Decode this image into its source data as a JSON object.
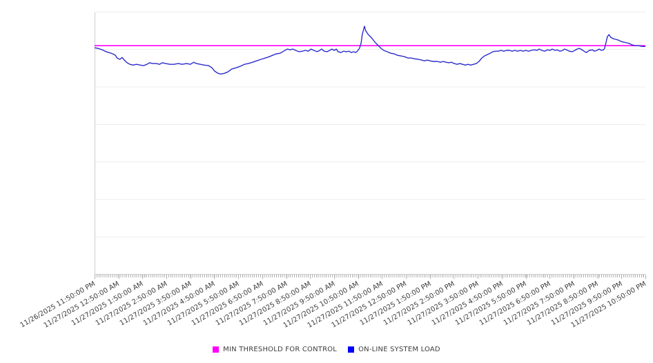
{
  "chart_data": {
    "type": "line",
    "title": "",
    "x_axis": {
      "labels": [
        "11/26/2025 11:50:00 PM",
        "11/27/2025 12:50:00 AM",
        "11/27/2025 1:50:00 AM",
        "11/27/2025 2:50:00 AM",
        "11/27/2025 3:50:00 AM",
        "11/27/2025 4:50:00 AM",
        "11/27/2025 5:50:00 AM",
        "11/27/2025 6:50:00 AM",
        "11/27/2025 7:50:00 AM",
        "11/27/2025 8:50:00 AM",
        "11/27/2025 9:50:00 AM",
        "11/27/2025 10:50:00 AM",
        "11/27/2025 11:50:00 AM",
        "11/27/2025 12:50:00 PM",
        "11/27/2025 1:50:00 PM",
        "11/27/2025 2:50:00 PM",
        "11/27/2025 3:50:00 PM",
        "11/27/2025 4:50:00 PM",
        "11/27/2025 5:50:00 PM",
        "11/27/2025 6:50:00 PM",
        "11/27/2025 7:50:00 PM",
        "11/27/2025 8:50:00 PM",
        "11/27/2025 9:50:00 PM",
        "11/27/2025 10:50:00 PM"
      ],
      "tick_interval": "1 hour"
    },
    "y_axis": {
      "labels_visible": false,
      "ylim": [
        0,
        100
      ],
      "gridline_values": [
        14.3,
        28.6,
        42.9,
        57.1,
        71.4,
        85.7
      ]
    },
    "legend_position": "bottom-center",
    "series": [
      {
        "name": "MIN THRESHOLD FOR CONTROL",
        "type": "constant-line",
        "color": "#ff00ff",
        "legend_color": "#ff00ff",
        "value": 87.1
      },
      {
        "name": "ON-LINE SYSTEM LOAD",
        "type": "line",
        "color": "#2a2acd",
        "legend_color": "#0000ff",
        "points": [
          [
            0,
            86.3
          ],
          [
            0.6,
            86.1
          ],
          [
            1.4,
            85.5
          ],
          [
            2.1,
            84.8
          ],
          [
            2.6,
            84.5
          ],
          [
            3.3,
            84
          ],
          [
            3.8,
            83.4
          ],
          [
            4.1,
            82.4
          ],
          [
            4.6,
            81.9
          ],
          [
            5,
            82.6
          ],
          [
            5.4,
            81.6
          ],
          [
            5.9,
            80.6
          ],
          [
            6.4,
            80
          ],
          [
            7,
            79.7
          ],
          [
            7.6,
            80
          ],
          [
            8.3,
            79.7
          ],
          [
            8.9,
            79.5
          ],
          [
            9.5,
            80
          ],
          [
            10,
            80.6
          ],
          [
            10.5,
            80.3
          ],
          [
            11.2,
            80.3
          ],
          [
            11.8,
            80
          ],
          [
            12.3,
            80.6
          ],
          [
            12.9,
            80.3
          ],
          [
            13.7,
            80
          ],
          [
            14.4,
            80
          ],
          [
            15.2,
            80.3
          ],
          [
            15.9,
            80
          ],
          [
            16.7,
            80.3
          ],
          [
            17.4,
            80
          ],
          [
            18,
            80.8
          ],
          [
            18.5,
            80.3
          ],
          [
            19.2,
            80
          ],
          [
            19.9,
            79.7
          ],
          [
            20.7,
            79.5
          ],
          [
            21.3,
            78.7
          ],
          [
            21.8,
            77.4
          ],
          [
            22.4,
            76.6
          ],
          [
            22.9,
            76.3
          ],
          [
            23.6,
            76.6
          ],
          [
            24.2,
            77.1
          ],
          [
            24.9,
            78.2
          ],
          [
            25.7,
            78.7
          ],
          [
            26.4,
            79.2
          ],
          [
            27.2,
            80
          ],
          [
            27.9,
            80.3
          ],
          [
            28.7,
            80.8
          ],
          [
            29.4,
            81.3
          ],
          [
            30.2,
            81.9
          ],
          [
            31,
            82.4
          ],
          [
            31.7,
            82.9
          ],
          [
            32.3,
            83.4
          ],
          [
            33,
            84
          ],
          [
            33.7,
            84.2
          ],
          [
            34.3,
            85
          ],
          [
            35,
            85.8
          ],
          [
            35.5,
            85.5
          ],
          [
            36,
            85.8
          ],
          [
            36.5,
            85.3
          ],
          [
            37.1,
            84.8
          ],
          [
            37.7,
            85
          ],
          [
            38.3,
            85.3
          ],
          [
            38.8,
            85
          ],
          [
            39.3,
            85.8
          ],
          [
            39.8,
            85.3
          ],
          [
            40.4,
            84.8
          ],
          [
            40.9,
            85.3
          ],
          [
            41.2,
            85.8
          ],
          [
            41.7,
            85
          ],
          [
            42.2,
            84.8
          ],
          [
            42.7,
            85.3
          ],
          [
            43.1,
            85.8
          ],
          [
            43.5,
            85.3
          ],
          [
            43.9,
            85.8
          ],
          [
            44.2,
            84.8
          ],
          [
            44.7,
            84.5
          ],
          [
            45.2,
            85
          ],
          [
            45.7,
            84.8
          ],
          [
            46.2,
            85
          ],
          [
            46.6,
            84.5
          ],
          [
            47,
            84.8
          ],
          [
            47.4,
            84.5
          ],
          [
            47.7,
            85
          ],
          [
            48.1,
            86.1
          ],
          [
            48.4,
            88.2
          ],
          [
            48.6,
            91.3
          ],
          [
            48.9,
            93.7
          ],
          [
            49,
            94.5
          ],
          [
            49.2,
            92.9
          ],
          [
            49.5,
            91.9
          ],
          [
            49.7,
            91.3
          ],
          [
            50.1,
            90.5
          ],
          [
            50.5,
            89.5
          ],
          [
            51,
            88.2
          ],
          [
            51.5,
            87.1
          ],
          [
            52,
            86.1
          ],
          [
            52.5,
            85.3
          ],
          [
            53.1,
            84.8
          ],
          [
            53.8,
            84.2
          ],
          [
            54.4,
            84
          ],
          [
            55,
            83.4
          ],
          [
            55.6,
            83.2
          ],
          [
            56.3,
            82.9
          ],
          [
            56.9,
            82.4
          ],
          [
            57.5,
            82.4
          ],
          [
            58.1,
            82.1
          ],
          [
            58.8,
            81.9
          ],
          [
            59.4,
            81.6
          ],
          [
            59.9,
            81.3
          ],
          [
            60.4,
            81.6
          ],
          [
            60.9,
            81.3
          ],
          [
            61.5,
            81.1
          ],
          [
            62.2,
            81.1
          ],
          [
            62.8,
            80.8
          ],
          [
            63.3,
            81.1
          ],
          [
            63.8,
            80.8
          ],
          [
            64.3,
            80.6
          ],
          [
            64.8,
            80.8
          ],
          [
            65.3,
            80.3
          ],
          [
            65.8,
            80
          ],
          [
            66.3,
            80.3
          ],
          [
            66.8,
            80
          ],
          [
            67.3,
            79.7
          ],
          [
            67.8,
            80
          ],
          [
            68.3,
            79.7
          ],
          [
            68.8,
            80
          ],
          [
            69.3,
            80.3
          ],
          [
            69.8,
            81.1
          ],
          [
            70.3,
            82.4
          ],
          [
            70.8,
            83.2
          ],
          [
            71.3,
            83.7
          ],
          [
            71.8,
            84.2
          ],
          [
            72.3,
            84.8
          ],
          [
            72.8,
            85
          ],
          [
            73.3,
            85
          ],
          [
            73.8,
            85.3
          ],
          [
            74.3,
            85
          ],
          [
            74.8,
            85.3
          ],
          [
            75.3,
            85.3
          ],
          [
            75.8,
            85
          ],
          [
            76.3,
            85.3
          ],
          [
            76.8,
            85
          ],
          [
            77.3,
            85.3
          ],
          [
            77.8,
            85
          ],
          [
            78.3,
            85.3
          ],
          [
            78.8,
            85
          ],
          [
            79.3,
            85.3
          ],
          [
            79.8,
            85.5
          ],
          [
            80.3,
            85.3
          ],
          [
            80.7,
            85.8
          ],
          [
            81.2,
            85.3
          ],
          [
            81.7,
            85
          ],
          [
            82.2,
            85.5
          ],
          [
            82.7,
            85.3
          ],
          [
            83.1,
            85.8
          ],
          [
            83.6,
            85.3
          ],
          [
            84,
            85.5
          ],
          [
            84.5,
            85
          ],
          [
            85,
            85.3
          ],
          [
            85.3,
            85.8
          ],
          [
            85.7,
            85.5
          ],
          [
            86.2,
            85
          ],
          [
            86.7,
            84.8
          ],
          [
            87.2,
            85.3
          ],
          [
            87.6,
            85.8
          ],
          [
            88,
            86.1
          ],
          [
            88.5,
            85.5
          ],
          [
            89,
            84.8
          ],
          [
            89.3,
            84.5
          ],
          [
            89.8,
            85.3
          ],
          [
            90.4,
            85.5
          ],
          [
            90.7,
            85
          ],
          [
            91.2,
            85.3
          ],
          [
            91.6,
            85.8
          ],
          [
            92,
            85.3
          ],
          [
            92.4,
            85.5
          ],
          [
            92.6,
            86.1
          ],
          [
            92.9,
            88.7
          ],
          [
            93.1,
            90.5
          ],
          [
            93.4,
            91.3
          ],
          [
            93.7,
            90.3
          ],
          [
            94.1,
            89.8
          ],
          [
            94.6,
            89.5
          ],
          [
            95.1,
            89.2
          ],
          [
            95.6,
            88.7
          ],
          [
            96.1,
            88.4
          ],
          [
            96.6,
            88.2
          ],
          [
            97.1,
            87.9
          ],
          [
            97.6,
            87.4
          ],
          [
            98.1,
            87.1
          ],
          [
            98.7,
            87.1
          ],
          [
            99.4,
            86.8
          ],
          [
            100,
            86.8
          ]
        ]
      }
    ]
  },
  "colors": {
    "background": "#ffffff",
    "plot_border": "#cccccc",
    "gridline": "#ececec",
    "axis_tick": "#aaaaaa",
    "label_text": "#3d3d3d"
  }
}
